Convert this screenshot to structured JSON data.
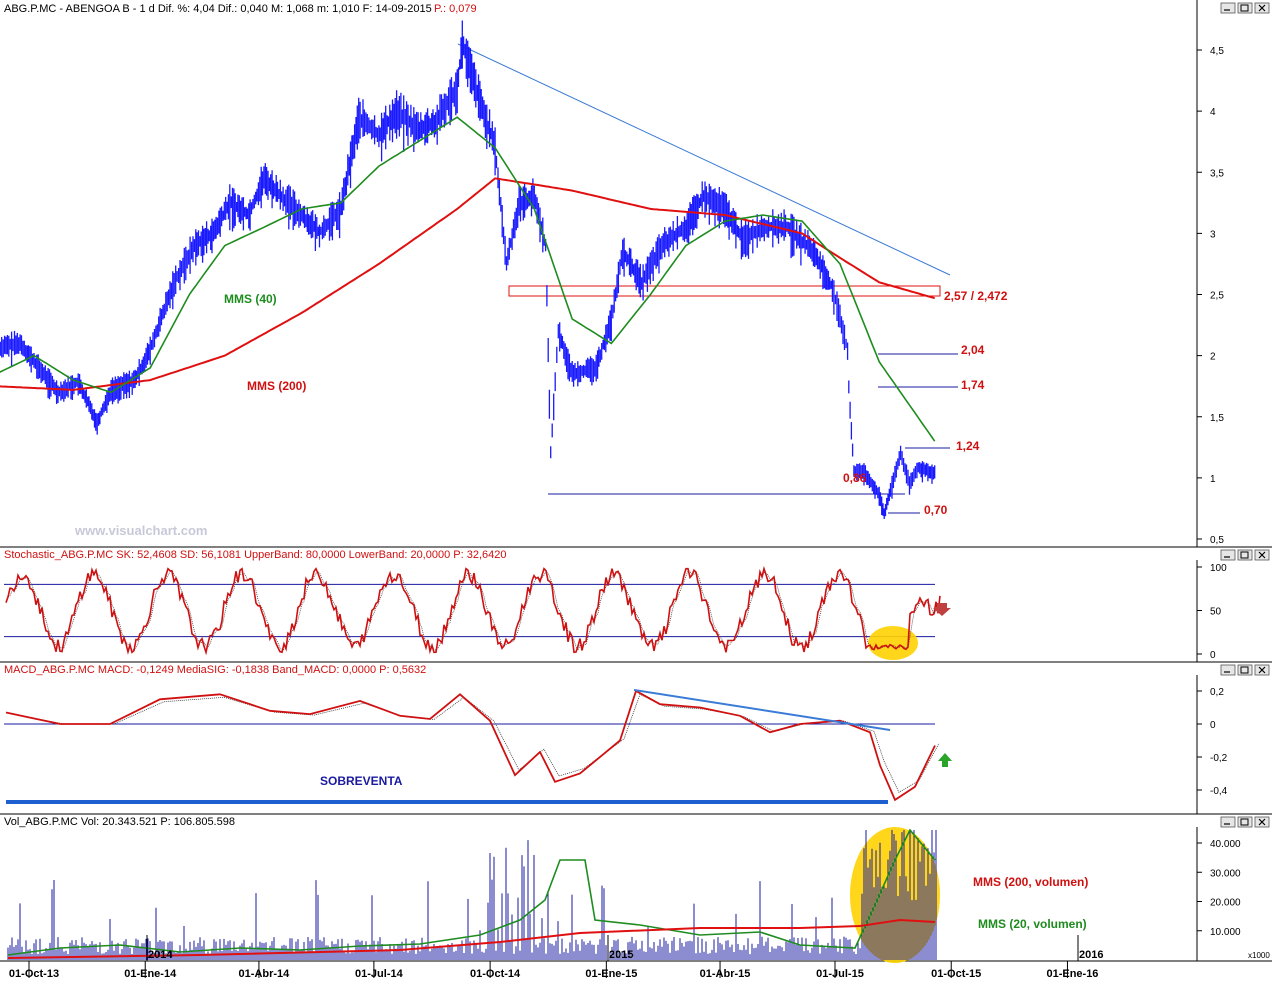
{
  "colors": {
    "price": "#1a1aff",
    "mms40": "#1e8c1e",
    "mms200": "#e01010",
    "stoch": "#d01010",
    "macd": "#d01010",
    "bands": "#1a1aa0",
    "trendline": "#3a7bd5",
    "highlight": "#ffd200",
    "levels_text": "#d01010"
  },
  "watermark": "www.visualchart.com",
  "window_buttons": [
    "minimize-icon",
    "restore-icon",
    "close-icon"
  ],
  "panels": {
    "price": {
      "header": "ABG.P.MC - ABENGOA B - 1 d Dif. %: 4,04 Dif.: 0,040 M: 1,068 m: 1,010 F: 14-09-2015",
      "header_p": "P.: 0,079",
      "y_ticks": [
        "4,5",
        "4",
        "3,5",
        "3",
        "2,5",
        "2",
        "1,5",
        "1",
        "0,5"
      ],
      "labels": {
        "mms40": "MMS (40)",
        "mms200": "MMS (200)",
        "zone": "2,57 / 2,472",
        "l204": "2,04",
        "l174": "1,74",
        "l124": "1,24",
        "l086": "0,86",
        "l070": "0,70"
      }
    },
    "stochastic": {
      "header": "Stochastic_ABG.P.MC SK: 52,4608 SD: 56,1081 UpperBand: 80,0000 LowerBand: 20,0000 P: 32,6420",
      "y_ticks": [
        "100",
        "50",
        "0"
      ]
    },
    "macd": {
      "header": "MACD_ABG.P.MC MACD: -0,1249 MediaSIG: -0,1838 Band_MACD: 0,0000 P: 0,5632",
      "y_ticks": [
        "0,2",
        "0",
        "-0,2",
        "-0,4"
      ],
      "label": "SOBREVENTA"
    },
    "volume": {
      "header": "Vol_ABG.P.MC Vol: 20.343.521 P: 106.805.598",
      "y_ticks": [
        "40.000",
        "30.000",
        "20.000",
        "10.000"
      ],
      "unit": "x1000",
      "labels": {
        "mms200v": "MMS (200, volumen)",
        "mms20v": "MMS (20, volumen)"
      },
      "year_marks": [
        "2014",
        "2015",
        "2016"
      ]
    }
  },
  "x_axis": [
    "01-Oct-13",
    "01-Ene-14",
    "01-Abr-14",
    "01-Jul-14",
    "01-Oct-14",
    "01-Ene-15",
    "01-Abr-15",
    "01-Jul-15",
    "01-Oct-15",
    "01-Ene-16"
  ],
  "chart_data": [
    {
      "type": "line",
      "title": "ABG.P.MC - ABENGOA B - 1 d",
      "x_unit": "date",
      "ylim": [
        0.5,
        4.7
      ],
      "series": [
        {
          "name": "ABG.P.MC",
          "points": [
            [
              "2013-09-01",
              2.06
            ],
            [
              "2013-09-20",
              2.1
            ],
            [
              "2013-10-01",
              1.95
            ],
            [
              "2013-10-20",
              1.7
            ],
            [
              "2013-11-05",
              1.78
            ],
            [
              "2013-11-20",
              1.45
            ],
            [
              "2013-12-01",
              1.72
            ],
            [
              "2013-12-20",
              1.8
            ],
            [
              "2014-01-01",
              2.05
            ],
            [
              "2014-01-20",
              2.6
            ],
            [
              "2014-02-05",
              2.9
            ],
            [
              "2014-02-20",
              3.0
            ],
            [
              "2014-03-05",
              3.25
            ],
            [
              "2014-03-20",
              3.15
            ],
            [
              "2014-04-01",
              3.45
            ],
            [
              "2014-04-15",
              3.3
            ],
            [
              "2014-05-01",
              3.15
            ],
            [
              "2014-05-15",
              3.0
            ],
            [
              "2014-06-01",
              3.2
            ],
            [
              "2014-06-15",
              3.95
            ],
            [
              "2014-07-01",
              3.8
            ],
            [
              "2014-07-15",
              4.0
            ],
            [
              "2014-08-01",
              3.85
            ],
            [
              "2014-08-15",
              3.9
            ],
            [
              "2014-09-01",
              4.2
            ],
            [
              "2014-09-05",
              4.56
            ],
            [
              "2014-09-20",
              4.05
            ],
            [
              "2014-10-01",
              3.7
            ],
            [
              "2014-10-10",
              2.75
            ],
            [
              "2014-10-20",
              3.25
            ],
            [
              "2014-11-01",
              3.3
            ],
            [
              "2014-11-10",
              2.9
            ],
            [
              "2014-11-14",
              1.2
            ],
            [
              "2014-11-20",
              2.2
            ],
            [
              "2014-12-01",
              1.85
            ],
            [
              "2014-12-20",
              1.9
            ],
            [
              "2015-01-01",
              2.3
            ],
            [
              "2015-01-10",
              2.85
            ],
            [
              "2015-01-25",
              2.6
            ],
            [
              "2015-02-10",
              2.9
            ],
            [
              "2015-03-01",
              3.05
            ],
            [
              "2015-03-15",
              3.3
            ],
            [
              "2015-04-01",
              3.2
            ],
            [
              "2015-04-15",
              2.95
            ],
            [
              "2015-05-01",
              3.05
            ],
            [
              "2015-05-20",
              3.05
            ],
            [
              "2015-06-10",
              2.85
            ],
            [
              "2015-06-25",
              2.55
            ],
            [
              "2015-07-01",
              2.3
            ],
            [
              "2015-07-07",
              2.04
            ],
            [
              "2015-07-08",
              1.74
            ],
            [
              "2015-07-12",
              1.05
            ],
            [
              "2015-07-20",
              1.05
            ],
            [
              "2015-08-01",
              0.86
            ],
            [
              "2015-08-05",
              0.7
            ],
            [
              "2015-08-10",
              0.9
            ],
            [
              "2015-08-18",
              1.2
            ],
            [
              "2015-08-25",
              0.95
            ],
            [
              "2015-09-01",
              1.08
            ],
            [
              "2015-09-14",
              1.04
            ]
          ]
        },
        {
          "name": "MMS (40)",
          "points": [
            [
              "2013-09-01",
              1.85
            ],
            [
              "2013-10-01",
              2.0
            ],
            [
              "2013-11-01",
              1.8
            ],
            [
              "2013-12-01",
              1.7
            ],
            [
              "2014-01-01",
              1.9
            ],
            [
              "2014-02-01",
              2.5
            ],
            [
              "2014-03-01",
              2.9
            ],
            [
              "2014-04-01",
              3.05
            ],
            [
              "2014-05-01",
              3.2
            ],
            [
              "2014-06-01",
              3.25
            ],
            [
              "2014-07-01",
              3.55
            ],
            [
              "2014-08-01",
              3.75
            ],
            [
              "2014-09-01",
              3.95
            ],
            [
              "2014-10-01",
              3.7
            ],
            [
              "2014-11-01",
              3.2
            ],
            [
              "2014-12-01",
              2.3
            ],
            [
              "2015-01-01",
              2.1
            ],
            [
              "2015-02-01",
              2.5
            ],
            [
              "2015-03-01",
              2.9
            ],
            [
              "2015-04-01",
              3.1
            ],
            [
              "2015-05-01",
              3.15
            ],
            [
              "2015-06-01",
              3.1
            ],
            [
              "2015-07-01",
              2.75
            ],
            [
              "2015-08-01",
              1.95
            ],
            [
              "2015-09-14",
              1.3
            ]
          ]
        },
        {
          "name": "MMS (200)",
          "points": [
            [
              "2013-09-01",
              1.75
            ],
            [
              "2013-11-01",
              1.72
            ],
            [
              "2014-01-01",
              1.8
            ],
            [
              "2014-03-01",
              2.0
            ],
            [
              "2014-05-01",
              2.35
            ],
            [
              "2014-07-01",
              2.75
            ],
            [
              "2014-09-01",
              3.2
            ],
            [
              "2014-10-01",
              3.45
            ],
            [
              "2014-11-01",
              3.4
            ],
            [
              "2014-12-01",
              3.35
            ],
            [
              "2015-02-01",
              3.2
            ],
            [
              "2015-04-01",
              3.15
            ],
            [
              "2015-06-01",
              3.0
            ],
            [
              "2015-07-01",
              2.8
            ],
            [
              "2015-08-01",
              2.6
            ],
            [
              "2015-09-14",
              2.47
            ]
          ]
        }
      ],
      "annotations": [
        "MMS (40)",
        "MMS (200)",
        "2,57 / 2,472",
        "2,04",
        "1,74",
        "1,24",
        "0,86",
        "0,70"
      ]
    },
    {
      "type": "line",
      "title": "Stochastic_ABG.P.MC",
      "ylim": [
        0,
        100
      ],
      "bands": [
        80,
        20
      ],
      "series": [
        {
          "name": "SK",
          "last": 52.4608
        },
        {
          "name": "SD",
          "last": 56.1081
        }
      ]
    },
    {
      "type": "line",
      "title": "MACD_ABG.P.MC",
      "ylim": [
        -0.5,
        0.25
      ],
      "series": [
        {
          "name": "MACD",
          "last": -0.1249
        },
        {
          "name": "MediaSIG",
          "last": -0.1838
        }
      ],
      "band": 0.0
    },
    {
      "type": "bar",
      "title": "Vol_ABG.P.MC",
      "y_unit": "x1000",
      "ylim": [
        0,
        45000
      ],
      "series": [
        {
          "name": "Vol",
          "last": 20343.521
        },
        {
          "name": "MMS (200, volumen)"
        },
        {
          "name": "MMS (20, volumen)"
        }
      ]
    }
  ]
}
